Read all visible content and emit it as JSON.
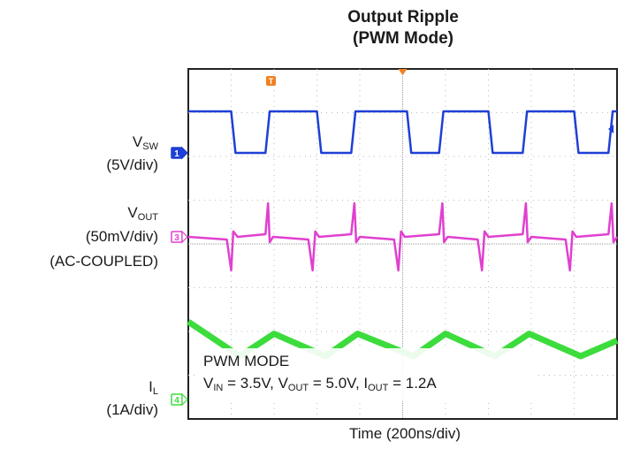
{
  "chart_data": {
    "type": "line",
    "title": "Output Ripple",
    "subtitle": "(PWM Mode)",
    "xlabel": "Time (200ns/div)",
    "x_unit": "ns",
    "xlim": [
      0,
      2000
    ],
    "grid": true,
    "grid_divisions": {
      "x": 10,
      "y": 8
    },
    "annotation": {
      "line1": "PWM MODE",
      "line2": {
        "vin_sub": "IN",
        "vin_val": " = 3.5V, ",
        "vout_sub": "OUT",
        "vout_val": " = 5.0V, ",
        "iout_sub": "OUT",
        "iout_val": " = 1.2A"
      }
    },
    "trigger_marker": "T",
    "series": [
      {
        "name": "VSW",
        "channel": "1",
        "label_main": "V",
        "label_sub": "SW",
        "scale": "(5V/div)",
        "color": "#1f3fd6",
        "x": [
          0,
          200,
          220,
          360,
          380,
          600,
          620,
          760,
          780,
          1020,
          1040,
          1170,
          1190,
          1400,
          1420,
          1560,
          1580,
          1800,
          1820,
          1960,
          1980,
          2000
        ],
        "y": [
          5,
          5,
          0,
          0,
          5,
          5,
          0,
          0,
          5,
          5,
          0,
          0,
          5,
          5,
          0,
          0,
          5,
          5,
          0,
          0,
          5,
          5
        ]
      },
      {
        "name": "VOUT",
        "channel": "3",
        "label_main": "V",
        "label_sub": "OUT",
        "scale": "(50mV/div)",
        "coupling": "(AC-COUPLED)",
        "color": "#e040d0",
        "x": [
          0,
          180,
          200,
          210,
          230,
          360,
          372,
          380,
          395,
          560,
          580,
          592,
          610,
          760,
          775,
          783,
          800,
          960,
          980,
          992,
          1010,
          1170,
          1185,
          1193,
          1210,
          1350,
          1370,
          1382,
          1400,
          1560,
          1575,
          1583,
          1600,
          1760,
          1780,
          1792,
          1810,
          1960,
          1975,
          1983,
          2000
        ],
        "y": [
          0,
          -4,
          -50,
          8,
          0,
          4,
          50,
          -8,
          0,
          -4,
          -50,
          8,
          0,
          4,
          50,
          -8,
          0,
          -4,
          -50,
          8,
          0,
          4,
          50,
          -8,
          0,
          -4,
          -50,
          8,
          0,
          4,
          50,
          -8,
          0,
          -4,
          -50,
          8,
          0,
          4,
          50,
          -8,
          0
        ]
      },
      {
        "name": "IL",
        "channel": "4",
        "label_main": "I",
        "label_sub": "L",
        "scale": "(1A/div)",
        "color": "#3ddc3d",
        "x": [
          0,
          240,
          400,
          640,
          790,
          1050,
          1200,
          1430,
          1590,
          1830,
          2000
        ],
        "y": [
          1.7,
          0.7,
          1.35,
          0.7,
          1.35,
          0.7,
          1.35,
          0.7,
          1.35,
          0.7,
          1.15
        ]
      }
    ]
  }
}
